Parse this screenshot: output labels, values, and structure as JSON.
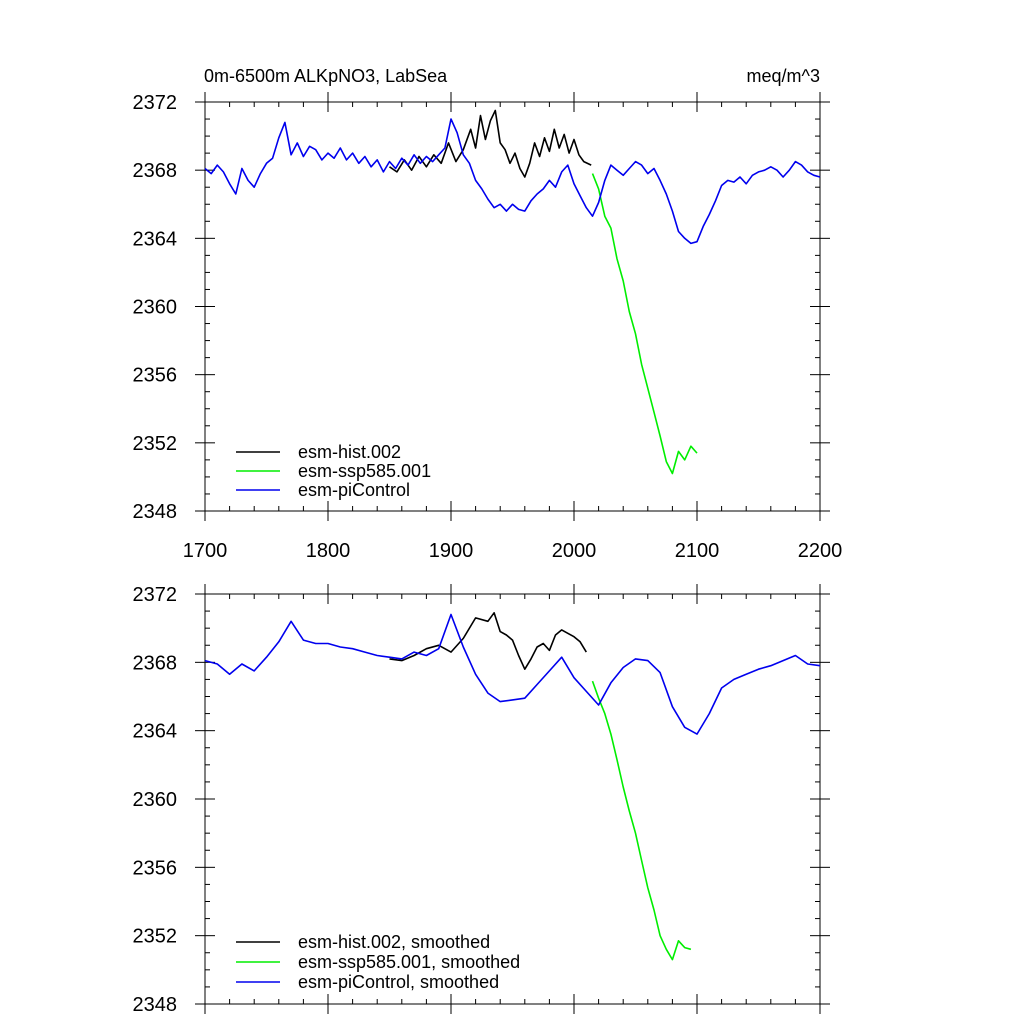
{
  "header": {
    "left": "0m-6500m ALKpNO3, LabSea",
    "right": "meq/m^3"
  },
  "colors": {
    "hist": "#000000",
    "ssp585": "#00ee00",
    "piControl": "#0000ee"
  },
  "chart_data": [
    {
      "type": "line",
      "title": "0m-6500m ALKpNO3, LabSea",
      "units": "meq/m^3",
      "xlim": [
        1700,
        2200
      ],
      "ylim": [
        2348,
        2372
      ],
      "x_ticks": [
        1700,
        1800,
        1900,
        2000,
        2100,
        2200
      ],
      "y_ticks": [
        2348,
        2352,
        2356,
        2360,
        2364,
        2368,
        2372
      ],
      "x_tick_labels_shown": true,
      "legend_position": "bottom-left",
      "series": [
        {
          "name": "esm-hist.002",
          "color": "#000000",
          "x": [
            1850,
            1856,
            1862,
            1868,
            1874,
            1880,
            1886,
            1892,
            1898,
            1904,
            1910,
            1916,
            1920,
            1924,
            1928,
            1932,
            1936,
            1940,
            1944,
            1948,
            1952,
            1956,
            1960,
            1964,
            1968,
            1972,
            1976,
            1980,
            1984,
            1988,
            1992,
            1996,
            2000,
            2004,
            2008,
            2014
          ],
          "values": [
            2368.2,
            2367.9,
            2368.6,
            2368.0,
            2368.8,
            2368.2,
            2368.9,
            2368.4,
            2369.6,
            2368.5,
            2369.2,
            2370.4,
            2369.3,
            2371.2,
            2369.8,
            2370.9,
            2371.5,
            2369.6,
            2369.2,
            2368.4,
            2369.0,
            2368.1,
            2367.6,
            2368.4,
            2369.6,
            2368.8,
            2369.9,
            2369.1,
            2370.4,
            2369.3,
            2370.1,
            2369.0,
            2369.8,
            2368.9,
            2368.5,
            2368.3
          ]
        },
        {
          "name": "esm-ssp585.001",
          "color": "#00ee00",
          "x": [
            2015,
            2020,
            2025,
            2030,
            2035,
            2040,
            2045,
            2050,
            2055,
            2060,
            2065,
            2070,
            2075,
            2080,
            2085,
            2090,
            2095,
            2100
          ],
          "values": [
            2367.8,
            2366.9,
            2365.3,
            2364.6,
            2362.8,
            2361.5,
            2359.7,
            2358.4,
            2356.6,
            2355.2,
            2353.8,
            2352.4,
            2350.9,
            2350.2,
            2351.5,
            2351.0,
            2351.8,
            2351.4
          ]
        },
        {
          "name": "esm-piControl",
          "color": "#0000ee",
          "x": [
            1700,
            1705,
            1710,
            1715,
            1720,
            1725,
            1730,
            1735,
            1740,
            1745,
            1750,
            1755,
            1760,
            1765,
            1770,
            1775,
            1780,
            1785,
            1790,
            1795,
            1800,
            1805,
            1810,
            1815,
            1820,
            1825,
            1830,
            1835,
            1840,
            1845,
            1850,
            1855,
            1860,
            1865,
            1870,
            1875,
            1880,
            1885,
            1890,
            1895,
            1900,
            1905,
            1910,
            1915,
            1920,
            1925,
            1930,
            1935,
            1940,
            1945,
            1950,
            1955,
            1960,
            1965,
            1970,
            1975,
            1980,
            1985,
            1990,
            1995,
            2000,
            2005,
            2010,
            2015,
            2020,
            2025,
            2030,
            2035,
            2040,
            2045,
            2050,
            2055,
            2060,
            2065,
            2070,
            2075,
            2080,
            2085,
            2090,
            2095,
            2100,
            2105,
            2110,
            2115,
            2120,
            2125,
            2130,
            2135,
            2140,
            2145,
            2150,
            2155,
            2160,
            2165,
            2170,
            2175,
            2180,
            2185,
            2190,
            2195,
            2200
          ],
          "values": [
            2368.1,
            2367.8,
            2368.3,
            2367.9,
            2367.2,
            2366.6,
            2368.1,
            2367.4,
            2367.0,
            2367.8,
            2368.4,
            2368.7,
            2369.9,
            2370.8,
            2368.9,
            2369.6,
            2368.8,
            2369.4,
            2369.2,
            2368.6,
            2369.0,
            2368.7,
            2369.3,
            2368.6,
            2369.0,
            2368.4,
            2368.8,
            2368.2,
            2368.6,
            2367.9,
            2368.5,
            2368.1,
            2368.7,
            2368.3,
            2368.9,
            2368.4,
            2368.8,
            2368.5,
            2368.9,
            2369.3,
            2371.0,
            2370.2,
            2368.9,
            2368.4,
            2367.4,
            2366.9,
            2366.3,
            2365.8,
            2366.0,
            2365.6,
            2366.0,
            2365.7,
            2365.6,
            2366.2,
            2366.6,
            2366.9,
            2367.4,
            2367.0,
            2367.9,
            2368.3,
            2367.2,
            2366.5,
            2365.8,
            2365.3,
            2366.1,
            2367.4,
            2368.3,
            2368.0,
            2367.7,
            2368.1,
            2368.5,
            2368.3,
            2367.8,
            2368.1,
            2367.4,
            2366.6,
            2365.6,
            2364.4,
            2364.0,
            2363.7,
            2363.8,
            2364.7,
            2365.4,
            2366.2,
            2367.1,
            2367.4,
            2367.3,
            2367.6,
            2367.2,
            2367.7,
            2367.9,
            2368.0,
            2368.2,
            2368.0,
            2367.6,
            2368.0,
            2368.5,
            2368.3,
            2367.9,
            2367.7,
            2367.6
          ]
        }
      ]
    },
    {
      "type": "line",
      "xlim": [
        1700,
        2200
      ],
      "ylim": [
        2348,
        2372
      ],
      "x_ticks": [
        1700,
        1800,
        1900,
        2000,
        2100,
        2200
      ],
      "y_ticks": [
        2348,
        2352,
        2356,
        2360,
        2364,
        2368,
        2372
      ],
      "x_tick_labels_shown": false,
      "legend_position": "bottom-left",
      "series": [
        {
          "name": "esm-hist.002, smoothed",
          "color": "#000000",
          "x": [
            1850,
            1860,
            1870,
            1880,
            1890,
            1900,
            1910,
            1920,
            1930,
            1935,
            1940,
            1945,
            1950,
            1955,
            1960,
            1965,
            1970,
            1975,
            1980,
            1985,
            1990,
            1995,
            2000,
            2005,
            2010
          ],
          "values": [
            2368.2,
            2368.1,
            2368.4,
            2368.8,
            2369.0,
            2368.6,
            2369.4,
            2370.6,
            2370.4,
            2370.9,
            2369.8,
            2369.6,
            2369.3,
            2368.4,
            2367.6,
            2368.2,
            2368.9,
            2369.1,
            2368.7,
            2369.6,
            2369.9,
            2369.7,
            2369.5,
            2369.2,
            2368.6
          ]
        },
        {
          "name": "esm-ssp585.001, smoothed",
          "color": "#00ee00",
          "x": [
            2015,
            2020,
            2025,
            2030,
            2035,
            2040,
            2045,
            2050,
            2055,
            2060,
            2065,
            2070,
            2075,
            2080,
            2085,
            2090,
            2095
          ],
          "values": [
            2366.9,
            2365.9,
            2365.0,
            2363.8,
            2362.3,
            2360.7,
            2359.3,
            2358.0,
            2356.4,
            2354.8,
            2353.5,
            2352.0,
            2351.2,
            2350.6,
            2351.7,
            2351.3,
            2351.2
          ]
        },
        {
          "name": "esm-piControl, smoothed",
          "color": "#0000ee",
          "x": [
            1700,
            1710,
            1720,
            1730,
            1740,
            1750,
            1760,
            1770,
            1780,
            1790,
            1800,
            1810,
            1820,
            1830,
            1840,
            1850,
            1860,
            1870,
            1880,
            1890,
            1900,
            1910,
            1920,
            1930,
            1940,
            1950,
            1960,
            1970,
            1980,
            1990,
            2000,
            2010,
            2020,
            2030,
            2040,
            2050,
            2060,
            2070,
            2080,
            2090,
            2100,
            2110,
            2120,
            2130,
            2140,
            2150,
            2160,
            2170,
            2180,
            2190,
            2200
          ],
          "values": [
            2368.1,
            2367.9,
            2367.3,
            2367.9,
            2367.5,
            2368.3,
            2369.2,
            2370.4,
            2369.3,
            2369.1,
            2369.1,
            2368.9,
            2368.8,
            2368.6,
            2368.4,
            2368.3,
            2368.2,
            2368.6,
            2368.4,
            2368.8,
            2370.8,
            2368.9,
            2367.3,
            2366.2,
            2365.7,
            2365.8,
            2365.9,
            2366.7,
            2367.5,
            2368.3,
            2367.1,
            2366.3,
            2365.5,
            2366.8,
            2367.7,
            2368.2,
            2368.1,
            2367.4,
            2365.4,
            2364.2,
            2363.8,
            2365.0,
            2366.5,
            2367.0,
            2367.3,
            2367.6,
            2367.8,
            2368.1,
            2368.4,
            2367.9,
            2367.8
          ]
        }
      ]
    }
  ]
}
